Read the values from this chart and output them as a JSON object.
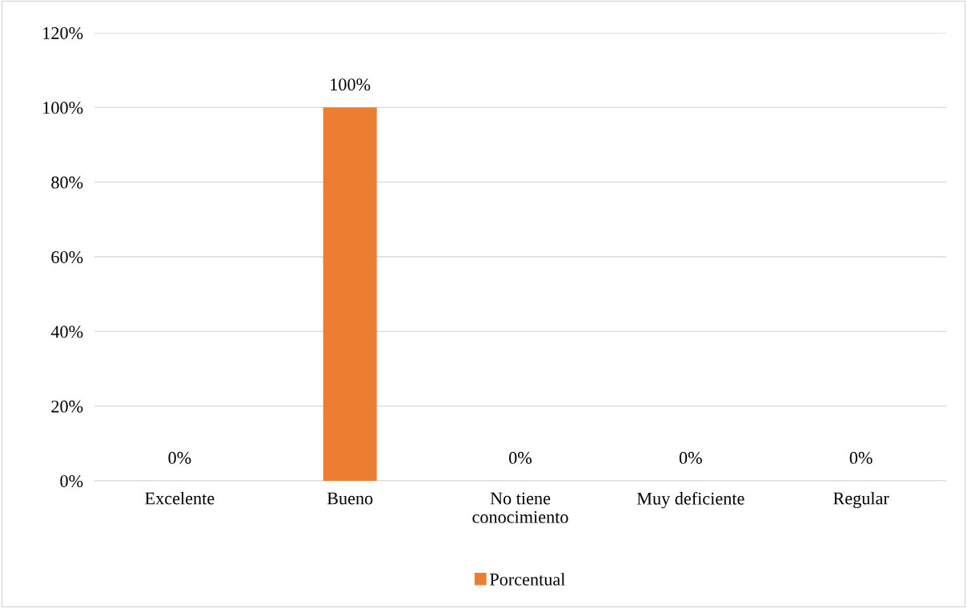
{
  "chart_data": {
    "type": "bar",
    "categories": [
      "Excelente",
      "Bueno",
      "No tiene\nconocimiento",
      "Muy deficiente",
      "Regular"
    ],
    "series": [
      {
        "name": "Porcentual",
        "color": "#ed7d31",
        "values": [
          0,
          100,
          0,
          0,
          0
        ],
        "value_labels": [
          "0%",
          "100%",
          "0%",
          "0%",
          "0%"
        ]
      }
    ],
    "ylim": [
      0,
      120
    ],
    "yticks": [
      {
        "value": 0,
        "label": "0%"
      },
      {
        "value": 20,
        "label": "20%"
      },
      {
        "value": 40,
        "label": "40%"
      },
      {
        "value": 60,
        "label": "60%"
      },
      {
        "value": 80,
        "label": "80%"
      },
      {
        "value": 100,
        "label": "100%"
      },
      {
        "value": 120,
        "label": "120%"
      }
    ],
    "grid": "y",
    "legend": "bottom"
  }
}
